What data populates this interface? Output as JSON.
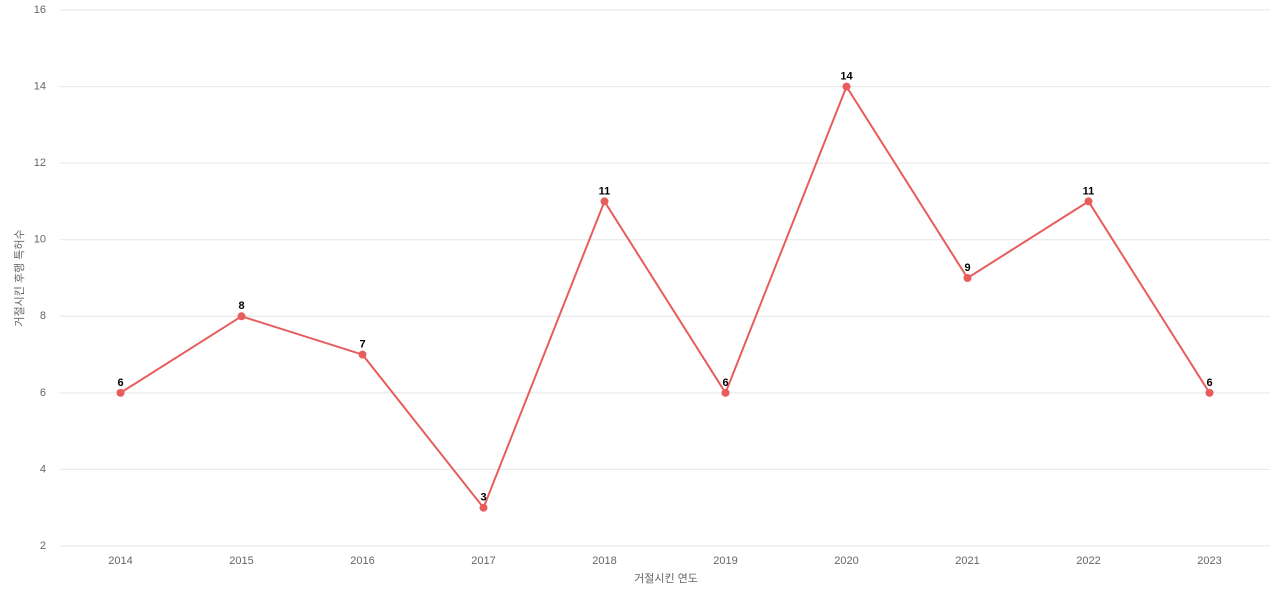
{
  "chart_data": {
    "type": "line",
    "x_label": "거절시킨 연도",
    "y_label": "거절시킨 후행 특허수",
    "categories": [
      "2014",
      "2015",
      "2016",
      "2017",
      "2018",
      "2019",
      "2020",
      "2021",
      "2022",
      "2023"
    ],
    "series": [
      {
        "name": "거절시킨 후행 특허수",
        "color": "#e85c5c",
        "values": [
          6,
          8,
          7,
          3,
          11,
          6,
          14,
          9,
          11,
          6
        ]
      }
    ],
    "ylim": [
      2,
      16
    ],
    "yticks": [
      2,
      4,
      6,
      8,
      10,
      12,
      14,
      16
    ],
    "grid": true,
    "data_labels": true
  }
}
